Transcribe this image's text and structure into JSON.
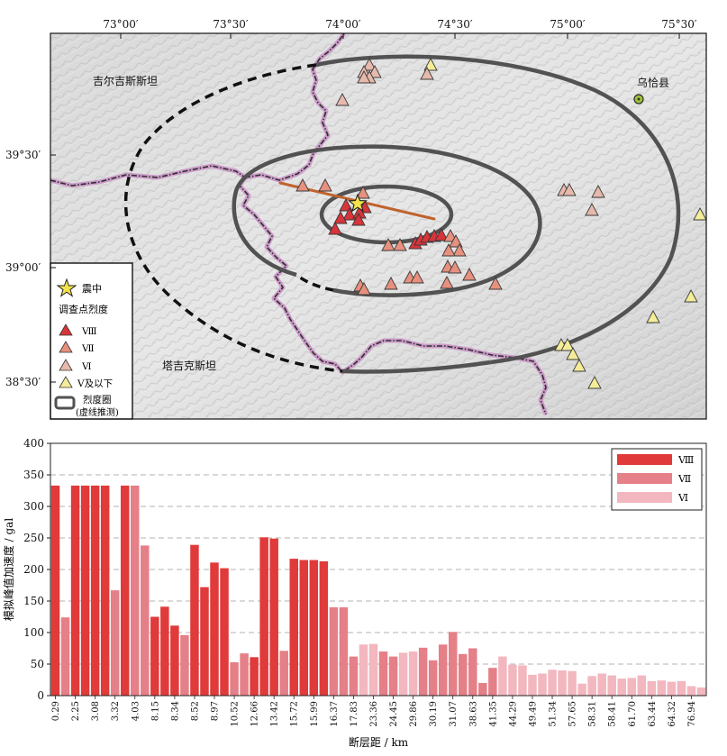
{
  "map": {
    "lon_ticks": [
      "73°00′",
      "73°30′",
      "74°00′",
      "74°30′",
      "75°00′",
      "75°30′"
    ],
    "lat_ticks": [
      "39°30′",
      "39°00′",
      "38°30′"
    ],
    "regions": {
      "kyrgyzstan": "吉尔吉斯斯坦",
      "tajikistan": "塔吉克斯坦",
      "wuqia": "乌恰县"
    },
    "legend": {
      "epicenter": "震中",
      "survey_title": "调查点烈度",
      "viii": "Ⅷ",
      "vii": "Ⅶ",
      "vi": "Ⅵ",
      "v_below": "Ⅴ及以下",
      "isoseismal_line1": "烈度圈",
      "isoseismal_line2": "(虚线推测)"
    },
    "colors": {
      "viii": "#d8343a",
      "vii": "#e8907e",
      "vi": "#e6b9ac",
      "v_below": "#f4ec98",
      "fault": "#c0622c",
      "isoseismal": "#525252",
      "border_glow": "#c98fc6",
      "border": "#2f2f2f",
      "epicenter": "#f3e34a"
    }
  },
  "chart_data": {
    "type": "bar",
    "ylabel": "模拟峰值加速度 / gal",
    "xlabel": "断层距 / km",
    "ylim": [
      0,
      400
    ],
    "yticks": [
      0,
      50,
      100,
      150,
      200,
      250,
      300,
      350,
      400
    ],
    "grid": "horizontal dashed",
    "legend_placement": "top-right",
    "legend": [
      "Ⅷ",
      "Ⅶ",
      "Ⅵ"
    ],
    "colors": {
      "Ⅷ": "#e03a3a",
      "Ⅶ": "#e57f88",
      "Ⅵ": "#f2b7bf"
    },
    "x_tick_labels": [
      "0.29",
      "2.25",
      "3.08",
      "3.32",
      "4.03",
      "8.15",
      "8.34",
      "8.52",
      "8.97",
      "10.52",
      "12.66",
      "13.42",
      "15.72",
      "15.99",
      "16.37",
      "17.83",
      "23.36",
      "24.45",
      "29.86",
      "30.19",
      "31.07",
      "38.63",
      "41.35",
      "44.29",
      "49.49",
      "51.34",
      "57.65",
      "58.31",
      "58.41",
      "61.70",
      "63.44",
      "64.32",
      "76.94"
    ],
    "values": [
      333,
      124,
      333,
      333,
      333,
      333,
      167,
      333,
      333,
      238,
      125,
      141,
      111,
      96,
      239,
      172,
      211,
      202,
      53,
      67,
      61,
      251,
      249,
      71,
      217,
      215,
      215,
      213,
      140,
      140,
      62,
      81,
      82,
      70,
      62,
      68,
      70,
      76,
      56,
      81,
      101,
      66,
      75,
      20,
      44,
      62,
      49,
      48,
      33,
      35,
      41,
      40,
      39,
      19,
      31,
      35,
      32,
      27,
      28,
      32,
      23,
      24,
      22,
      23,
      15,
      13
    ],
    "intensity": [
      "Ⅷ",
      "Ⅶ",
      "Ⅷ",
      "Ⅷ",
      "Ⅷ",
      "Ⅷ",
      "Ⅶ",
      "Ⅷ",
      "Ⅶ",
      "Ⅶ",
      "Ⅷ",
      "Ⅷ",
      "Ⅷ",
      "Ⅶ",
      "Ⅷ",
      "Ⅷ",
      "Ⅷ",
      "Ⅷ",
      "Ⅶ",
      "Ⅶ",
      "Ⅷ",
      "Ⅷ",
      "Ⅷ",
      "Ⅶ",
      "Ⅷ",
      "Ⅷ",
      "Ⅷ",
      "Ⅷ",
      "Ⅶ",
      "Ⅶ",
      "Ⅶ",
      "Ⅵ",
      "Ⅵ",
      "Ⅶ",
      "Ⅶ",
      "Ⅵ",
      "Ⅵ",
      "Ⅶ",
      "Ⅶ",
      "Ⅶ",
      "Ⅶ",
      "Ⅶ",
      "Ⅶ",
      "Ⅶ",
      "Ⅶ",
      "Ⅵ",
      "Ⅵ",
      "Ⅵ",
      "Ⅵ",
      "Ⅵ",
      "Ⅵ",
      "Ⅵ",
      "Ⅵ",
      "Ⅵ",
      "Ⅵ",
      "Ⅵ",
      "Ⅵ",
      "Ⅵ",
      "Ⅵ",
      "Ⅵ",
      "Ⅵ",
      "Ⅵ",
      "Ⅵ",
      "Ⅵ",
      "Ⅵ",
      "Ⅵ"
    ]
  }
}
